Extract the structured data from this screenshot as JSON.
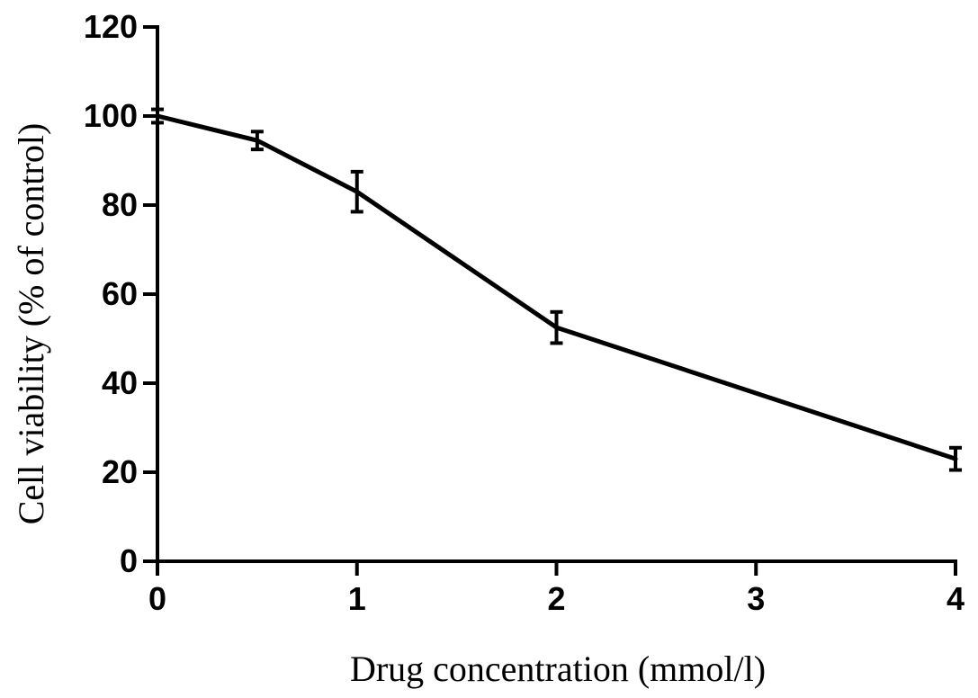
{
  "chart_data": {
    "type": "line",
    "title": "",
    "xlabel": "Drug concentration (mmol/l)",
    "ylabel": "Cell viability (% of control)",
    "xlim": [
      0,
      4
    ],
    "ylim": [
      0,
      120
    ],
    "x_ticks": [
      0,
      1,
      2,
      3,
      4
    ],
    "y_ticks": [
      0,
      20,
      40,
      60,
      80,
      100,
      120
    ],
    "grid": false,
    "legend": "none",
    "series": [
      {
        "x": [
          0,
          0.5,
          1,
          2,
          4
        ],
        "values": [
          100,
          94.5,
          83,
          52.5,
          23
        ],
        "error": [
          1.5,
          2,
          4.5,
          3.5,
          2.5
        ],
        "color": "#000000"
      }
    ]
  }
}
